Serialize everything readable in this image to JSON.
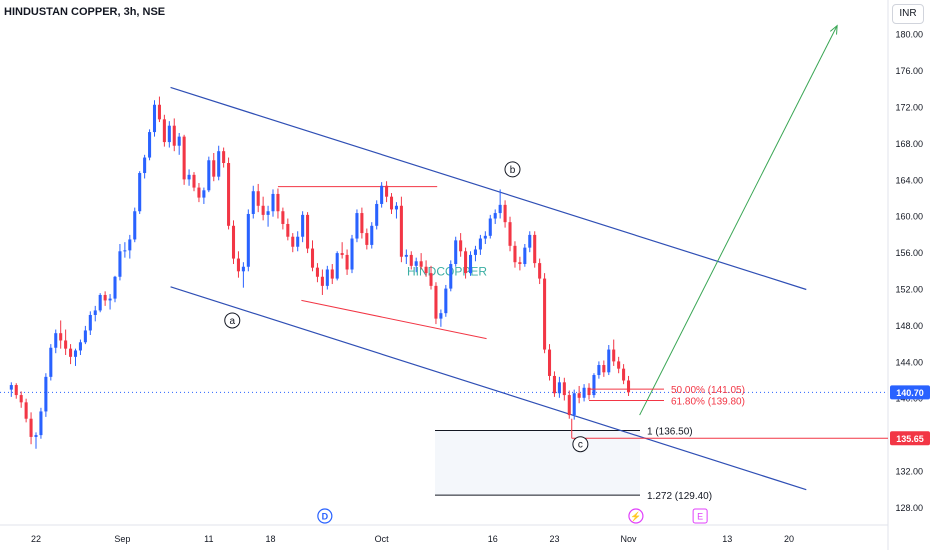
{
  "header": {
    "title": "HINDUSTAN COPPER, 3h, NSE",
    "currency": "INR"
  },
  "colors": {
    "up": "#2962ff",
    "down": "#f23645",
    "channel": "#2f4fb5",
    "fib": "#f23645",
    "projection": "#3aa655",
    "price_label_bg": "#2962ff",
    "stop_label_bg": "#f23645"
  },
  "chart_data": {
    "type": "candlestick",
    "symbol": "HINDUSTAN COPPER",
    "interval": "3h",
    "exchange": "NSE",
    "ylim": [
      126,
      182
    ],
    "y_ticks": [
      128,
      132,
      136,
      140,
      144,
      148,
      152,
      156,
      160,
      164,
      168,
      172,
      176,
      180
    ],
    "x_ticks": [
      {
        "label": "22",
        "t": 0
      },
      {
        "label": "Sep",
        "t": 7
      },
      {
        "label": "11",
        "t": 14
      },
      {
        "label": "18",
        "t": 19
      },
      {
        "label": "Oct",
        "t": 28
      },
      {
        "label": "16",
        "t": 37
      },
      {
        "label": "23",
        "t": 42
      },
      {
        "label": "Nov",
        "t": 48
      },
      {
        "label": "13",
        "t": 56
      },
      {
        "label": "20",
        "t": 61
      }
    ],
    "last_price": "140.70",
    "last_price_value": 140.7,
    "stop_level": "135.65",
    "stop_level_value": 135.65,
    "watermark": "HINDCOPPER",
    "wave_labels": [
      {
        "text": "a",
        "t": 15.9,
        "price": 148.6
      },
      {
        "text": "b",
        "t": 38.6,
        "price": 165.2
      },
      {
        "text": "c",
        "t": 44.1,
        "price": 135.0
      }
    ],
    "fib_levels": [
      {
        "label": "50.00% (141.05)",
        "value": 141.05
      },
      {
        "label": "61.80% (139.80)",
        "value": 139.8
      }
    ],
    "extension_levels": [
      {
        "label": "1 (136.50)",
        "value": 136.5
      },
      {
        "label": "1.272 (129.40)",
        "value": 129.4
      }
    ],
    "events": [
      {
        "name": "dividend",
        "text": "D",
        "t": 23.4
      },
      {
        "name": "split",
        "text": "⚡",
        "t": 48.6
      },
      {
        "name": "earnings",
        "text": "E",
        "t": 53.8
      }
    ],
    "channel_upper": [
      [
        10.9,
        174.2
      ],
      [
        62.4,
        152.0
      ]
    ],
    "channel_lower": [
      [
        10.9,
        152.3
      ],
      [
        62.4,
        130.0
      ]
    ],
    "resistance_line": [
      [
        19.6,
        163.3
      ],
      [
        32.5,
        163.3
      ]
    ],
    "support_line": [
      [
        21.5,
        150.8
      ],
      [
        36.5,
        146.6
      ]
    ],
    "projection_arrow": [
      [
        48.9,
        138.2
      ],
      [
        64.9,
        181.0
      ]
    ],
    "candles": [
      [
        -2,
        141,
        141.8,
        140.2,
        141.5
      ],
      [
        -1.6,
        141.5,
        141.7,
        140,
        140.4
      ],
      [
        -1.2,
        140.4,
        140.8,
        139,
        139.6
      ],
      [
        -0.8,
        139.6,
        140,
        137.4,
        137.8
      ],
      [
        -0.4,
        137.8,
        138.5,
        135,
        135.8
      ],
      [
        0,
        135.8,
        136.3,
        134.5,
        136
      ],
      [
        0.4,
        136,
        139,
        135.6,
        138.6
      ],
      [
        0.8,
        138.6,
        142.8,
        138,
        142.4
      ],
      [
        1.2,
        142.4,
        146,
        142,
        145.6
      ],
      [
        1.6,
        145.6,
        147.6,
        145,
        147.2
      ],
      [
        2,
        147.2,
        148.6,
        145.5,
        146.4
      ],
      [
        2.4,
        146.4,
        147.6,
        144.8,
        145.5
      ],
      [
        2.8,
        145.5,
        146,
        143.8,
        144.6
      ],
      [
        3.2,
        144.6,
        145.5,
        143.6,
        145.3
      ],
      [
        3.6,
        145.3,
        146.5,
        144.8,
        146.2
      ],
      [
        4,
        146.2,
        148,
        146,
        147.5
      ],
      [
        4.4,
        147.5,
        149.6,
        147,
        149.2
      ],
      [
        4.8,
        149.2,
        150.2,
        148.5,
        149.7
      ],
      [
        5.2,
        149.7,
        151.6,
        149.5,
        151.4
      ],
      [
        5.6,
        151.4,
        151.8,
        150.2,
        150.8
      ],
      [
        6,
        150.8,
        151.5,
        149.8,
        151
      ],
      [
        6.4,
        151,
        153.5,
        150.6,
        153.4
      ],
      [
        6.8,
        153.4,
        157,
        153,
        156.2
      ],
      [
        7.2,
        156.2,
        157.2,
        155.5,
        156.3
      ],
      [
        7.6,
        156.3,
        158,
        155.4,
        157.5
      ],
      [
        8,
        157.5,
        161,
        157.2,
        160.6
      ],
      [
        8.4,
        160.6,
        165,
        160.3,
        164.8
      ],
      [
        8.8,
        164.8,
        166.8,
        164.2,
        166.5
      ],
      [
        9.2,
        166.5,
        169.6,
        166.2,
        169.3
      ],
      [
        9.6,
        169.3,
        172.8,
        168.8,
        172.3
      ],
      [
        10,
        172.3,
        173.2,
        170.4,
        170.7
      ],
      [
        10.4,
        170.7,
        171.2,
        167.7,
        168.2
      ],
      [
        10.8,
        168.2,
        170.5,
        167.6,
        170
      ],
      [
        11.2,
        170,
        170.8,
        167.2,
        167.8
      ],
      [
        11.6,
        167.8,
        169.2,
        166.8,
        168.8
      ],
      [
        12,
        168.8,
        169,
        163.5,
        164.1
      ],
      [
        12.4,
        164.1,
        165.2,
        163.4,
        164.6
      ],
      [
        12.8,
        164.6,
        164.9,
        162.8,
        163.2
      ],
      [
        13.2,
        163.2,
        163.7,
        161.6,
        162.1
      ],
      [
        13.6,
        162.1,
        163.2,
        161.4,
        162.9
      ],
      [
        14,
        162.9,
        166.6,
        162.7,
        166.2
      ],
      [
        14.4,
        166.2,
        167,
        163.9,
        164.4
      ],
      [
        14.8,
        164.4,
        167.8,
        164,
        167.2
      ],
      [
        15.2,
        167.2,
        167.6,
        165.4,
        165.9
      ],
      [
        15.6,
        165.9,
        166.5,
        158.6,
        159
      ],
      [
        16,
        159,
        159.6,
        154.8,
        155.4
      ],
      [
        16.4,
        155.4,
        156.2,
        153.3,
        154
      ],
      [
        16.8,
        154,
        155,
        152.2,
        154.5
      ],
      [
        17.2,
        154.5,
        160.8,
        154,
        160.3
      ],
      [
        17.6,
        160.3,
        163.4,
        159.8,
        162.8
      ],
      [
        18,
        162.8,
        163.6,
        160.5,
        161.2
      ],
      [
        18.4,
        161.2,
        162.2,
        159.6,
        160.2
      ],
      [
        18.8,
        160.2,
        161.2,
        158.9,
        160.6
      ],
      [
        19.2,
        160.6,
        163,
        160,
        162.5
      ],
      [
        19.6,
        162.5,
        163.1,
        159.8,
        160.6
      ],
      [
        20,
        160.6,
        161,
        158.6,
        159.2
      ],
      [
        20.4,
        159.2,
        159.8,
        157.4,
        157.8
      ],
      [
        20.8,
        157.8,
        158.2,
        156.1,
        156.7
      ],
      [
        21.2,
        156.7,
        158.4,
        156.2,
        157.8
      ],
      [
        21.6,
        157.8,
        160.6,
        157.2,
        160.2
      ],
      [
        22,
        160.2,
        160.5,
        156,
        156.5
      ],
      [
        22.4,
        156.5,
        157.4,
        154,
        154.4
      ],
      [
        22.8,
        154.4,
        154.9,
        152.8,
        153.4
      ],
      [
        23.2,
        153.4,
        154.2,
        151.4,
        152.4
      ],
      [
        23.6,
        152.4,
        154.6,
        152,
        154.2
      ],
      [
        24,
        154.2,
        154.8,
        152.6,
        153.2
      ],
      [
        24.4,
        153.2,
        156.2,
        153,
        156
      ],
      [
        24.8,
        156,
        157.2,
        155.4,
        155.8
      ],
      [
        25.2,
        155.8,
        156.4,
        153.6,
        154.2
      ],
      [
        25.6,
        154.2,
        158,
        153.8,
        157.6
      ],
      [
        26,
        157.6,
        160.8,
        157.2,
        160.4
      ],
      [
        26.4,
        160.4,
        161,
        157.6,
        158.2
      ],
      [
        26.8,
        158.2,
        158.7,
        156.4,
        156.9
      ],
      [
        27.2,
        156.9,
        159.4,
        156.5,
        159
      ],
      [
        27.6,
        159,
        161.8,
        158.6,
        161.4
      ],
      [
        28,
        161.4,
        163.8,
        161,
        163.4
      ],
      [
        28.4,
        163.4,
        163.9,
        161.6,
        162.2
      ],
      [
        28.8,
        162.2,
        162.6,
        160.3,
        160.8
      ],
      [
        29.2,
        160.8,
        161.6,
        159.8,
        161.2
      ],
      [
        29.6,
        161.2,
        162.2,
        155,
        155.6
      ],
      [
        30,
        155.6,
        156.4,
        154.8,
        155.8
      ],
      [
        30.4,
        155.8,
        156.2,
        154.2,
        154.6
      ],
      [
        30.8,
        154.6,
        155.5,
        153.9,
        155.1
      ],
      [
        31.2,
        155.1,
        156,
        154.2,
        154.5
      ],
      [
        31.6,
        154.5,
        155.2,
        153.4,
        153.8
      ],
      [
        32,
        153.8,
        154.6,
        152,
        152.4
      ],
      [
        32.4,
        152.4,
        152.8,
        148.2,
        148.8
      ],
      [
        32.8,
        148.8,
        149.8,
        147.9,
        149.4
      ],
      [
        33.2,
        149.4,
        152.5,
        149,
        152.1
      ],
      [
        33.6,
        152.1,
        155.2,
        151.8,
        154.8
      ],
      [
        34,
        154.8,
        157.8,
        154.5,
        157.4
      ],
      [
        34.4,
        157.4,
        158.2,
        155.6,
        156.2
      ],
      [
        34.8,
        156.2,
        156.6,
        153.2,
        153.8
      ],
      [
        35.2,
        153.8,
        156.2,
        153.5,
        155.8
      ],
      [
        35.6,
        155.8,
        156.8,
        155.1,
        156.4
      ],
      [
        36,
        156.4,
        158,
        155.8,
        157.6
      ],
      [
        36.4,
        157.6,
        158.4,
        157,
        157.9
      ],
      [
        36.8,
        157.9,
        160.2,
        157.6,
        159.8
      ],
      [
        37.2,
        159.8,
        160.8,
        159.2,
        160.4
      ],
      [
        37.6,
        160.4,
        163,
        159.8,
        161.3
      ],
      [
        38,
        161.3,
        161.8,
        158.8,
        159.4
      ],
      [
        38.4,
        159.4,
        160,
        156.2,
        156.8
      ],
      [
        38.8,
        156.8,
        157.3,
        154.4,
        155
      ],
      [
        39.2,
        155,
        155.6,
        154.1,
        154.8
      ],
      [
        39.6,
        154.8,
        157,
        154.5,
        156.6
      ],
      [
        40,
        156.6,
        158.4,
        156.1,
        158
      ],
      [
        40.4,
        158,
        158.4,
        154.4,
        154.9
      ],
      [
        40.8,
        154.9,
        155.4,
        152.6,
        153.2
      ],
      [
        41.2,
        153.2,
        153.8,
        145,
        145.4
      ],
      [
        41.6,
        145.4,
        146,
        142,
        142.5
      ],
      [
        42,
        142.5,
        143,
        140.2,
        140.6
      ],
      [
        42.4,
        140.6,
        142.4,
        140.1,
        141.8
      ],
      [
        42.8,
        141.8,
        142.3,
        139.8,
        140.4
      ],
      [
        43.2,
        140.4,
        140.9,
        137.8,
        138.2
      ],
      [
        43.6,
        138.2,
        141,
        137.7,
        140.6
      ],
      [
        44,
        140.6,
        141.4,
        139.5,
        140.1
      ],
      [
        44.4,
        140.1,
        141.6,
        139.7,
        141.2
      ],
      [
        44.8,
        141.2,
        141.7,
        139.9,
        140.4
      ],
      [
        45.2,
        140.4,
        142.8,
        140.1,
        142.6
      ],
      [
        45.6,
        142.6,
        144.1,
        142.2,
        143.7
      ],
      [
        46,
        143.7,
        144.2,
        142.4,
        142.9
      ],
      [
        46.4,
        142.9,
        145.9,
        142.6,
        145.4
      ],
      [
        46.8,
        145.4,
        146.5,
        143.6,
        144.1
      ],
      [
        47.2,
        144.1,
        144.6,
        142.8,
        143.3
      ],
      [
        47.6,
        143.3,
        143.8,
        141.6,
        142
      ],
      [
        48,
        142,
        142.5,
        140.3,
        140.7
      ]
    ]
  }
}
